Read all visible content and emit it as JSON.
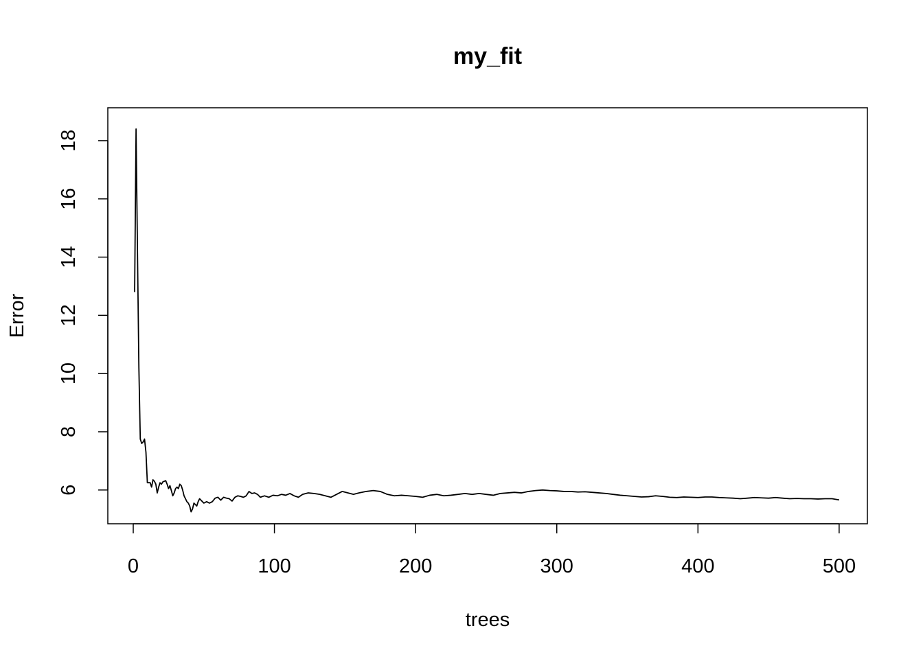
{
  "chart_data": {
    "type": "line",
    "title": "my_fit",
    "xlabel": "trees",
    "ylabel": "Error",
    "xlim": [
      -18,
      520
    ],
    "ylim": [
      4.84,
      19.13
    ],
    "xticks": [
      0,
      100,
      200,
      300,
      400,
      500
    ],
    "yticks": [
      6,
      8,
      10,
      12,
      14,
      16,
      18
    ],
    "grid": false,
    "series": [
      {
        "name": "",
        "x": [
          1,
          2,
          3,
          4,
          5,
          6,
          7,
          8,
          9,
          10,
          11,
          12,
          13,
          14,
          15,
          16,
          17,
          18,
          19,
          20,
          21,
          22,
          23,
          24,
          25,
          26,
          27,
          28,
          29,
          30,
          31,
          32,
          33,
          34,
          35,
          36,
          37,
          38,
          39,
          40,
          41,
          42,
          43,
          44,
          45,
          46,
          47,
          48,
          49,
          50,
          52,
          54,
          56,
          58,
          60,
          62,
          64,
          66,
          68,
          70,
          72,
          74,
          76,
          78,
          80,
          82,
          84,
          86,
          88,
          90,
          93,
          96,
          99,
          102,
          105,
          108,
          111,
          114,
          117,
          120,
          124,
          128,
          132,
          136,
          140,
          144,
          148,
          152,
          156,
          160,
          165,
          170,
          175,
          180,
          185,
          190,
          195,
          200,
          205,
          210,
          215,
          220,
          225,
          230,
          235,
          240,
          245,
          250,
          255,
          260,
          265,
          270,
          275,
          280,
          285,
          290,
          295,
          300,
          305,
          310,
          315,
          320,
          325,
          330,
          335,
          340,
          345,
          350,
          355,
          360,
          365,
          370,
          375,
          380,
          385,
          390,
          395,
          400,
          405,
          410,
          415,
          420,
          425,
          430,
          435,
          440,
          445,
          450,
          455,
          460,
          465,
          470,
          475,
          480,
          485,
          490,
          495,
          500
        ],
        "values": [
          12.8,
          18.4,
          14.2,
          10.2,
          7.75,
          7.6,
          7.65,
          7.75,
          7.3,
          6.25,
          6.25,
          6.25,
          6.1,
          6.35,
          6.3,
          6.2,
          5.9,
          6.1,
          6.25,
          6.2,
          6.28,
          6.3,
          6.32,
          6.2,
          6.05,
          6.15,
          5.98,
          5.8,
          5.9,
          6.05,
          6.1,
          6.05,
          6.2,
          6.15,
          6.0,
          5.8,
          5.7,
          5.6,
          5.55,
          5.45,
          5.25,
          5.35,
          5.55,
          5.5,
          5.45,
          5.6,
          5.7,
          5.65,
          5.6,
          5.55,
          5.6,
          5.55,
          5.6,
          5.72,
          5.75,
          5.65,
          5.75,
          5.72,
          5.7,
          5.62,
          5.75,
          5.8,
          5.78,
          5.75,
          5.8,
          5.95,
          5.88,
          5.9,
          5.85,
          5.75,
          5.8,
          5.75,
          5.82,
          5.8,
          5.85,
          5.82,
          5.88,
          5.8,
          5.75,
          5.85,
          5.9,
          5.88,
          5.85,
          5.8,
          5.75,
          5.85,
          5.95,
          5.9,
          5.85,
          5.9,
          5.95,
          5.98,
          5.95,
          5.85,
          5.8,
          5.82,
          5.8,
          5.78,
          5.75,
          5.82,
          5.85,
          5.8,
          5.82,
          5.85,
          5.88,
          5.85,
          5.88,
          5.85,
          5.82,
          5.88,
          5.9,
          5.92,
          5.9,
          5.95,
          5.98,
          6.0,
          5.98,
          5.97,
          5.95,
          5.95,
          5.93,
          5.94,
          5.92,
          5.9,
          5.88,
          5.85,
          5.82,
          5.8,
          5.78,
          5.76,
          5.77,
          5.8,
          5.78,
          5.75,
          5.74,
          5.76,
          5.75,
          5.74,
          5.76,
          5.76,
          5.74,
          5.73,
          5.72,
          5.7,
          5.72,
          5.74,
          5.73,
          5.72,
          5.74,
          5.72,
          5.7,
          5.71,
          5.7,
          5.7,
          5.69,
          5.7,
          5.7,
          5.66
        ]
      }
    ]
  }
}
